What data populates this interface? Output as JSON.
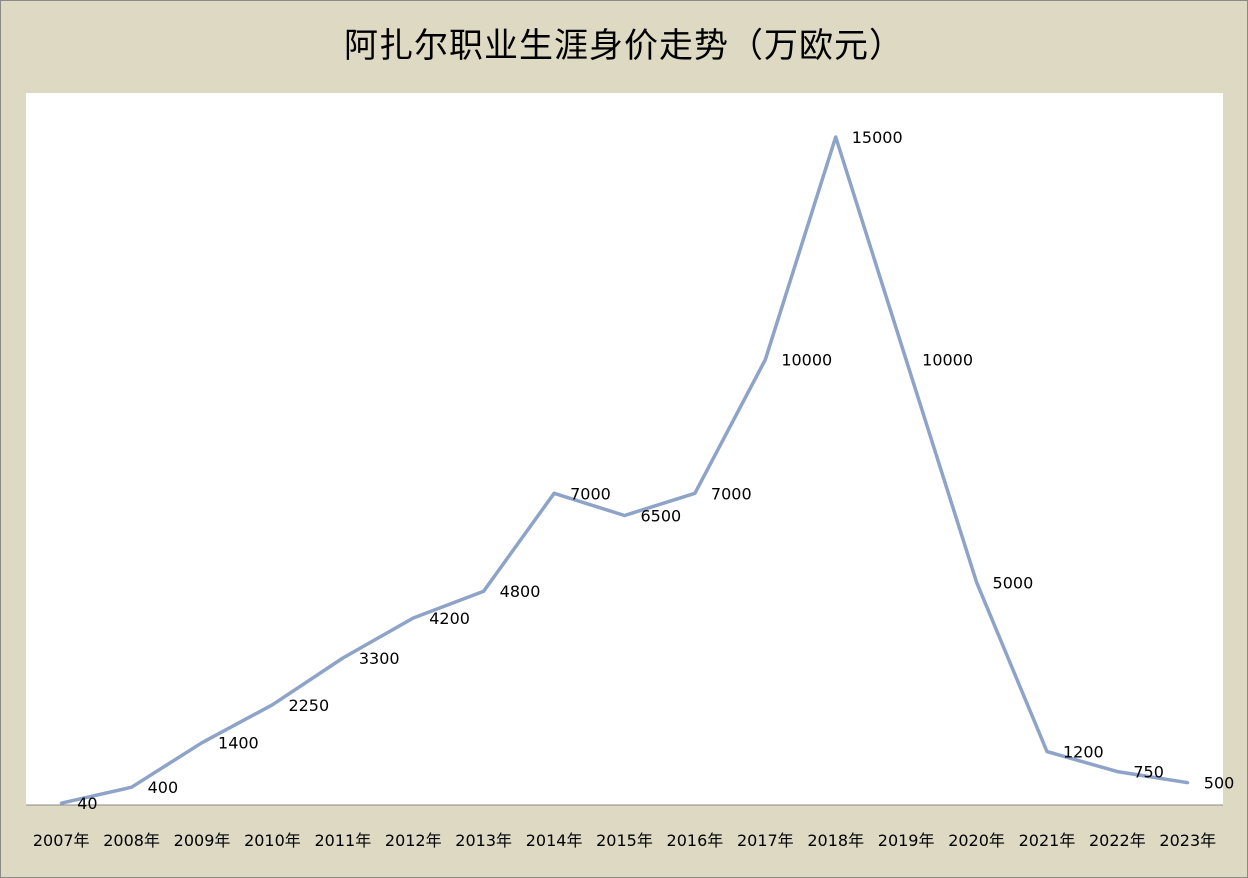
{
  "chart_data": {
    "type": "line",
    "title": "阿扎尔职业生涯身价走势（万欧元）",
    "xlabel": "",
    "ylabel": "",
    "categories": [
      "2007年",
      "2008年",
      "2009年",
      "2010年",
      "2011年",
      "2012年",
      "2013年",
      "2014年",
      "2015年",
      "2016年",
      "2017年",
      "2018年",
      "2019年",
      "2020年",
      "2021年",
      "2022年",
      "2023年"
    ],
    "values": [
      40,
      400,
      1400,
      2250,
      3300,
      4200,
      4800,
      7000,
      6500,
      7000,
      10000,
      15000,
      10000,
      5000,
      1200,
      750,
      500
    ],
    "data_labels": [
      "40",
      "400",
      "1400",
      "2250",
      "3300",
      "4200",
      "4800",
      "7000",
      "6500",
      "7000",
      "10000",
      "15000",
      "10000",
      "5000",
      "1200",
      "750",
      "500"
    ],
    "ylim": [
      0,
      16000
    ],
    "grid": false,
    "legend": "none",
    "line_color": "#8ea3c8"
  }
}
